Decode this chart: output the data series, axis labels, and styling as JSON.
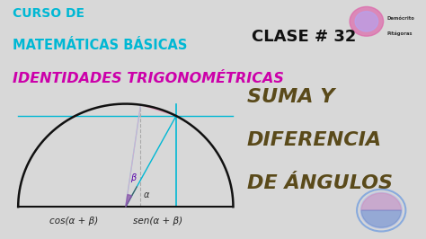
{
  "bg_color": "#d8d8d8",
  "title_line1": "CURSO DE",
  "title_line2": "MATEMÁTICAS BÁSICAS",
  "title_color": "#00b8d4",
  "subtitle": "IDENTIDADES TRIGONOMÉTRICAS",
  "subtitle_color": "#cc00aa",
  "clase_text": "CLASE # 32",
  "clase_color": "#111111",
  "right_line1": "SUMA Y",
  "right_line2": "DIFERENCIA",
  "right_line3": "DE ÁNGULOS",
  "right_color": "#5a4a1a",
  "box_facecolor": "#f8f8f0",
  "box_edgecolor": "#7ecfc0",
  "semicircle_color": "#111111",
  "line_cyan": "#00b8d4",
  "line_pink": "#e8a0c0",
  "line_lightblue": "#90d0e8",
  "angle_fill": "#8855aa",
  "label_beta": "β",
  "label_alpha": "α",
  "formula1": "cos(α + β)",
  "formula2": "sen(α + β)",
  "alpha_deg": 62,
  "beta_deg": 20,
  "logo_text1": "Demócrito",
  "logo_text2": "Pitágoras"
}
